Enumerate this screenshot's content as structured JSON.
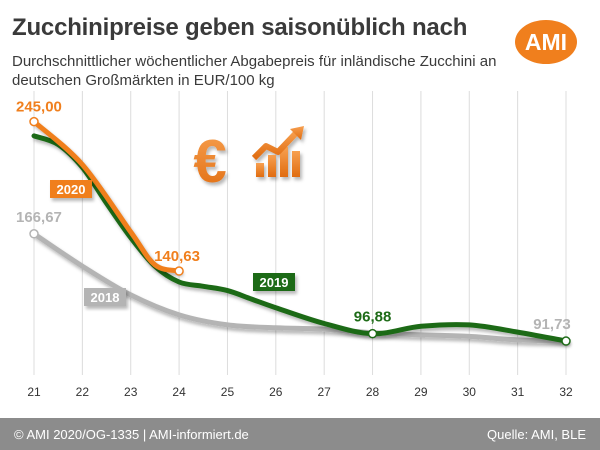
{
  "header": {
    "title": "Zucchinipreise geben saisonüblich nach",
    "subtitle": "Durchschnittlicher wöchentlicher Abgabepreis für inländische Zucchini an deutschen Großmärkten in EUR/100 kg",
    "logo_text": "AMI"
  },
  "footer": {
    "left": "© AMI 2020/OG-1335 | AMI-informiert.de",
    "right": "Quelle: AMI, BLE"
  },
  "icons": [
    "euro-icon",
    "rising-bar-chart-icon"
  ],
  "colors": {
    "accent_orange": "#f07f1d",
    "green": "#1e6b17",
    "grey": "#b4b4b4",
    "footer_grey": "#8c8c8c"
  },
  "chart_data": {
    "type": "line",
    "title": "Zucchinipreise geben saisonüblich nach",
    "xlabel": "",
    "ylabel": "",
    "x": [
      21,
      22,
      23,
      24,
      25,
      26,
      27,
      28,
      29,
      30,
      31,
      32
    ],
    "xlim": [
      21,
      32
    ],
    "ylim": [
      75,
      265
    ],
    "grid": "vertical",
    "series": [
      {
        "name": "2020",
        "color": "#f07f1d",
        "x": [
          21,
          22,
          23,
          23.5,
          24
        ],
        "values": [
          245.0,
          215.0,
          168.0,
          145.0,
          140.63
        ]
      },
      {
        "name": "2019",
        "color": "#1e6b17",
        "x": [
          21,
          21.5,
          22,
          22.5,
          23,
          23.5,
          24,
          24.5,
          25,
          25.5,
          26,
          27,
          28,
          29,
          30,
          31,
          32
        ],
        "values": [
          235.0,
          229.0,
          213.0,
          188.0,
          164.0,
          144.0,
          133.0,
          130.0,
          127.0,
          121.0,
          115.0,
          104.0,
          96.88,
          102.0,
          103.0,
          98.0,
          91.73
        ]
      },
      {
        "name": "2018",
        "color": "#b4b4b4",
        "x": [
          21,
          22,
          23,
          24,
          25,
          26,
          27,
          28,
          29,
          30,
          31,
          32
        ],
        "values": [
          166.67,
          144.0,
          124.0,
          110.0,
          103.0,
          101.0,
          100.0,
          97.5,
          96.0,
          95.0,
          92.5,
          91.73
        ]
      }
    ],
    "data_labels": [
      {
        "series": "2020",
        "x": 21,
        "y": 245.0,
        "text": "245,00",
        "color": "#f07f1d"
      },
      {
        "series": "2018",
        "x": 21,
        "y": 166.67,
        "text": "166,67",
        "color": "#b4b4b4"
      },
      {
        "series": "2020",
        "x": 24,
        "y": 140.63,
        "text": "140,63",
        "color": "#f07f1d"
      },
      {
        "series": "2019",
        "x": 28,
        "y": 96.88,
        "text": "96,88",
        "color": "#1e6b17"
      },
      {
        "series": "2019",
        "x": 32,
        "y": 91.73,
        "text": "91,73",
        "color": "#b4b4b4"
      }
    ]
  }
}
